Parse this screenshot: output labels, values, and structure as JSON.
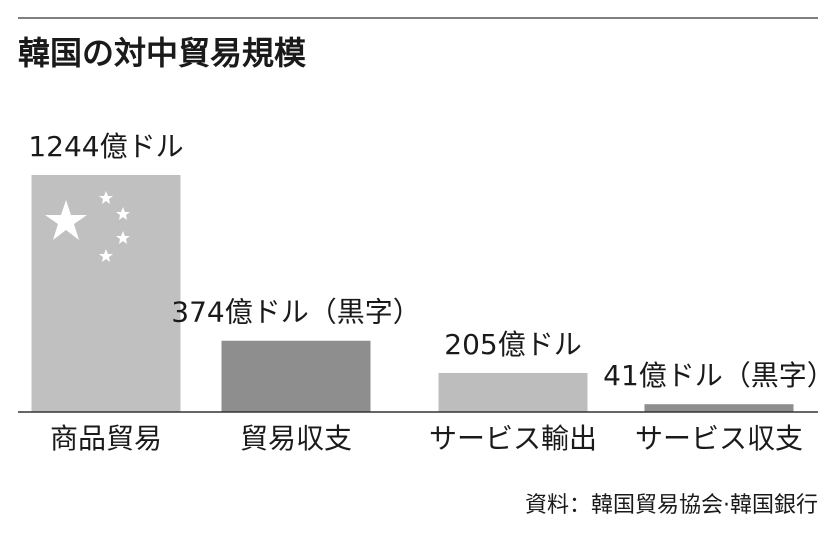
{
  "chart_data": {
    "type": "bar",
    "title": "韓国の対中貿易規模",
    "categories": [
      "商品貿易",
      "貿易収支",
      "サービス輸出",
      "サービス収支"
    ],
    "values": [
      1244,
      374,
      205,
      41
    ],
    "value_labels": [
      "1244億ドル",
      "374億ドル（黒字）",
      "205億ドル",
      "41億ドル（黒字）"
    ],
    "colors": [
      "#c0c0c0",
      "#8e8e8e",
      "#bdbdbd",
      "#8e8e8e"
    ],
    "source": "資料：韓国貿易協会·韓国銀行"
  }
}
